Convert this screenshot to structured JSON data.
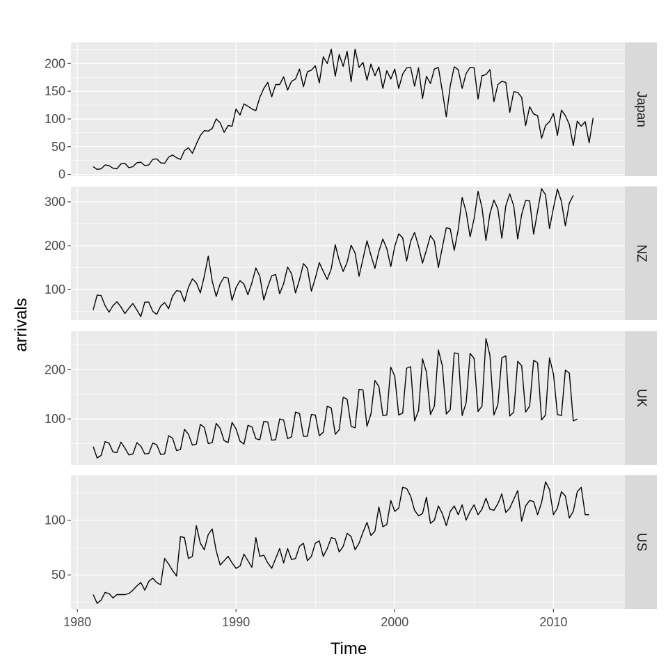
{
  "chart_data": {
    "type": "line",
    "xlabel": "Time",
    "ylabel": "arrivals",
    "x_ticks": [
      1980,
      1990,
      2000,
      2010
    ],
    "xlim": [
      1979.6,
      2014.5
    ],
    "start": 1981.0,
    "frequency": 4,
    "grid": true,
    "series": [
      {
        "name": "Japan",
        "ylim": [
          -3,
          238
        ],
        "y_ticks": [
          0,
          50,
          100,
          150,
          200
        ],
        "values": [
          14,
          9,
          10,
          17,
          16,
          11,
          10,
          19,
          20,
          12,
          14,
          21,
          22,
          16,
          17,
          27,
          28,
          21,
          20,
          31,
          35,
          30,
          27,
          43,
          48,
          38,
          55,
          70,
          79,
          78,
          83,
          100,
          93,
          76,
          88,
          87,
          118,
          107,
          127,
          123,
          118,
          115,
          139,
          155,
          166,
          140,
          162,
          162,
          176,
          152,
          168,
          172,
          190,
          158,
          185,
          188,
          196,
          165,
          212,
          200,
          226,
          177,
          216,
          195,
          222,
          167,
          226,
          193,
          202,
          170,
          199,
          178,
          194,
          155,
          187,
          172,
          190,
          155,
          181,
          192,
          193,
          159,
          192,
          137,
          177,
          164,
          190,
          193,
          150,
          104,
          160,
          194,
          189,
          155,
          182,
          193,
          192,
          136,
          178,
          180,
          189,
          131,
          162,
          168,
          166,
          112,
          149,
          148,
          139,
          88,
          122,
          109,
          106,
          65,
          88,
          95,
          110,
          70,
          116,
          106,
          90,
          52,
          96,
          87,
          95,
          57,
          102
        ]
      },
      {
        "name": "NZ",
        "ylim": [
          30,
          335
        ],
        "y_ticks": [
          100,
          200,
          300
        ],
        "values": [
          53,
          87,
          86,
          63,
          48,
          63,
          72,
          60,
          45,
          57,
          68,
          53,
          38,
          71,
          71,
          50,
          43,
          62,
          70,
          56,
          85,
          97,
          96,
          72,
          105,
          124,
          115,
          92,
          130,
          176,
          119,
          84,
          113,
          128,
          126,
          75,
          104,
          120,
          112,
          88,
          115,
          149,
          130,
          76,
          106,
          131,
          134,
          90,
          113,
          151,
          136,
          92,
          122,
          159,
          148,
          96,
          126,
          161,
          141,
          123,
          147,
          202,
          166,
          141,
          162,
          201,
          183,
          130,
          170,
          211,
          178,
          148,
          187,
          215,
          193,
          152,
          198,
          227,
          218,
          165,
          210,
          230,
          199,
          160,
          190,
          223,
          210,
          150,
          196,
          241,
          238,
          189,
          236,
          310,
          277,
          220,
          261,
          324,
          287,
          212,
          273,
          304,
          284,
          217,
          291,
          318,
          291,
          215,
          271,
          303,
          302,
          226,
          279,
          330,
          316,
          239,
          286,
          329,
          301,
          245,
          297,
          315
        ]
      },
      {
        "name": "UK",
        "ylim": [
          7,
          278
        ],
        "y_ticks": [
          100,
          200
        ],
        "values": [
          44,
          21,
          26,
          54,
          51,
          33,
          32,
          53,
          41,
          27,
          29,
          52,
          45,
          29,
          30,
          51,
          48,
          28,
          29,
          66,
          61,
          36,
          38,
          79,
          69,
          47,
          49,
          89,
          83,
          50,
          52,
          91,
          81,
          56,
          52,
          93,
          80,
          55,
          49,
          87,
          84,
          60,
          58,
          95,
          94,
          57,
          58,
          100,
          98,
          60,
          64,
          114,
          111,
          65,
          65,
          109,
          108,
          66,
          73,
          126,
          122,
          69,
          78,
          144,
          140,
          85,
          82,
          160,
          159,
          85,
          110,
          178,
          166,
          107,
          108,
          205,
          187,
          108,
          112,
          203,
          206,
          96,
          117,
          222,
          195,
          109,
          126,
          240,
          208,
          110,
          119,
          234,
          233,
          107,
          133,
          233,
          223,
          115,
          126,
          263,
          229,
          108,
          129,
          224,
          228,
          106,
          114,
          217,
          208,
          114,
          126,
          219,
          214,
          98,
          108,
          224,
          191,
          109,
          107,
          199,
          193,
          96,
          100
        ]
      },
      {
        "name": "US",
        "ylim": [
          19,
          141
        ],
        "y_ticks": [
          50,
          100
        ],
        "values": [
          32,
          24,
          27,
          34,
          33,
          29,
          32,
          32,
          32,
          33,
          36,
          40,
          43,
          36,
          44,
          47,
          43,
          41,
          65,
          60,
          54,
          49,
          85,
          84,
          65,
          67,
          95,
          79,
          73,
          87,
          92,
          72,
          59,
          63,
          67,
          61,
          56,
          58,
          69,
          63,
          57,
          84,
          67,
          68,
          61,
          56,
          65,
          74,
          61,
          74,
          64,
          65,
          76,
          79,
          63,
          67,
          79,
          81,
          67,
          74,
          84,
          83,
          71,
          76,
          88,
          85,
          73,
          79,
          89,
          98,
          86,
          90,
          112,
          94,
          96,
          118,
          108,
          111,
          130,
          129,
          122,
          109,
          104,
          106,
          121,
          97,
          100,
          113,
          106,
          95,
          108,
          113,
          105,
          114,
          100,
          108,
          114,
          105,
          110,
          120,
          110,
          109,
          115,
          124,
          107,
          111,
          119,
          127,
          99,
          113,
          118,
          117,
          105,
          116,
          135,
          128,
          105,
          111,
          126,
          122,
          102,
          108,
          126,
          130,
          105,
          105
        ]
      }
    ]
  }
}
